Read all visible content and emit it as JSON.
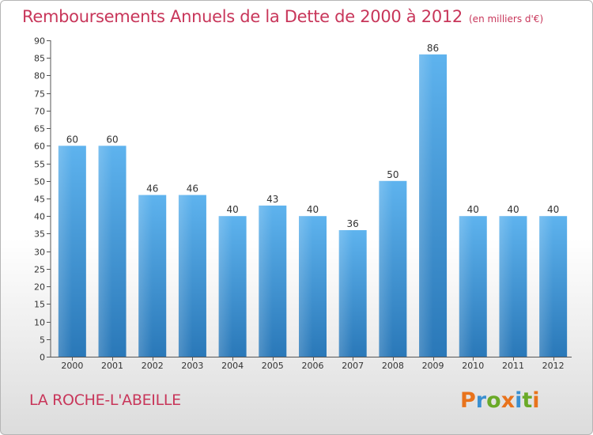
{
  "header": {
    "title": "Remboursements Annuels de la Dette de 2000 à 2012",
    "unit": "(en milliers d'€)"
  },
  "footer": {
    "commune": "LA ROCHE-L'ABEILLE",
    "logo": {
      "text": "Proxiti",
      "colors": [
        "#e8731c",
        "#3a8fd0",
        "#6aaa28",
        "#e8731c",
        "#3a8fd0",
        "#6aaa28",
        "#e8731c"
      ]
    }
  },
  "chart_data": {
    "type": "bar",
    "title": "Remboursements Annuels de la Dette de 2000 à 2012",
    "xlabel": "",
    "ylabel": "",
    "categories": [
      "2000",
      "2001",
      "2002",
      "2003",
      "2004",
      "2005",
      "2006",
      "2007",
      "2008",
      "2009",
      "2010",
      "2011",
      "2012"
    ],
    "values": [
      60,
      60,
      46,
      46,
      40,
      43,
      40,
      36,
      50,
      86,
      40,
      40,
      40
    ],
    "ylim": [
      0,
      90
    ],
    "ytick_step": 5,
    "grid": false,
    "bar_color_top": "#5eb3ee",
    "bar_color_bottom": "#2a78b8"
  }
}
